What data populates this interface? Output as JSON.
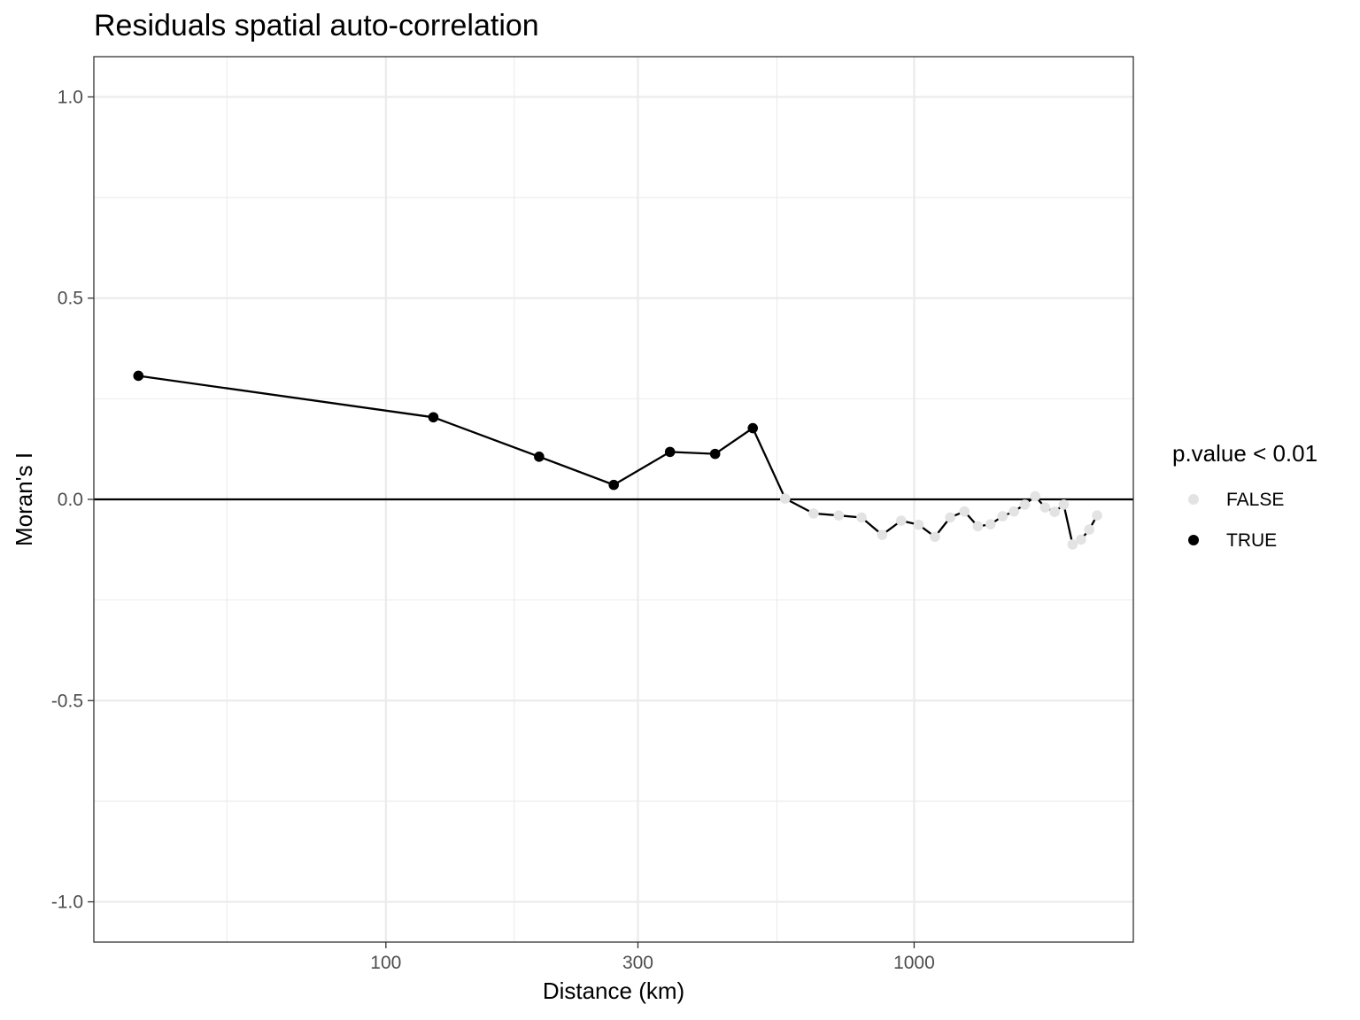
{
  "chart_data": {
    "type": "line",
    "title": "Residuals spatial auto-correlation",
    "xlabel": "Distance (km)",
    "ylabel": "Moran's I",
    "x_scale": "log10",
    "xlim": [
      28,
      2600
    ],
    "ylim": [
      -1.1,
      1.1
    ],
    "x_ticks": [
      100,
      300,
      1000
    ],
    "x_tick_labels": [
      "100",
      "300",
      "1000"
    ],
    "x_minor_ticks": [
      50,
      175,
      550
    ],
    "y_ticks": [
      -1.0,
      -0.5,
      0.0,
      0.5,
      1.0
    ],
    "y_tick_labels": [
      "-1.0",
      "-0.5",
      "0.0",
      "0.5",
      "1.0"
    ],
    "y_minor_ticks": [
      -0.75,
      -0.25,
      0.25,
      0.75
    ],
    "reference_line_y": 0,
    "grid": true,
    "legend": {
      "title": "p.value < 0.01",
      "position": "right",
      "entries": [
        {
          "label": "FALSE",
          "color": "#e3e3e3"
        },
        {
          "label": "TRUE",
          "color": "#000000"
        }
      ]
    },
    "line_color": "#000000",
    "points": [
      {
        "x": 34,
        "y": 0.307,
        "signif": true
      },
      {
        "x": 123,
        "y": 0.204,
        "signif": true
      },
      {
        "x": 195,
        "y": 0.106,
        "signif": true
      },
      {
        "x": 270,
        "y": 0.036,
        "signif": true
      },
      {
        "x": 345,
        "y": 0.118,
        "signif": true
      },
      {
        "x": 420,
        "y": 0.113,
        "signif": true
      },
      {
        "x": 495,
        "y": 0.177,
        "signif": true
      },
      {
        "x": 570,
        "y": 0.002,
        "signif": false
      },
      {
        "x": 645,
        "y": -0.035,
        "signif": false
      },
      {
        "x": 720,
        "y": -0.04,
        "signif": false
      },
      {
        "x": 795,
        "y": -0.045,
        "signif": false
      },
      {
        "x": 870,
        "y": -0.088,
        "signif": false
      },
      {
        "x": 945,
        "y": -0.053,
        "signif": false
      },
      {
        "x": 1020,
        "y": -0.063,
        "signif": false
      },
      {
        "x": 1095,
        "y": -0.093,
        "signif": false
      },
      {
        "x": 1170,
        "y": -0.045,
        "signif": false
      },
      {
        "x": 1245,
        "y": -0.03,
        "signif": false
      },
      {
        "x": 1320,
        "y": -0.067,
        "signif": false
      },
      {
        "x": 1395,
        "y": -0.062,
        "signif": false
      },
      {
        "x": 1470,
        "y": -0.042,
        "signif": false
      },
      {
        "x": 1545,
        "y": -0.03,
        "signif": false
      },
      {
        "x": 1620,
        "y": -0.013,
        "signif": false
      },
      {
        "x": 1695,
        "y": 0.008,
        "signif": false
      },
      {
        "x": 1770,
        "y": -0.02,
        "signif": false
      },
      {
        "x": 1845,
        "y": -0.031,
        "signif": false
      },
      {
        "x": 1920,
        "y": -0.013,
        "signif": false
      },
      {
        "x": 1995,
        "y": -0.112,
        "signif": false
      },
      {
        "x": 2070,
        "y": -0.1,
        "signif": false
      },
      {
        "x": 2145,
        "y": -0.075,
        "signif": false
      },
      {
        "x": 2220,
        "y": -0.04,
        "signif": false
      }
    ]
  }
}
